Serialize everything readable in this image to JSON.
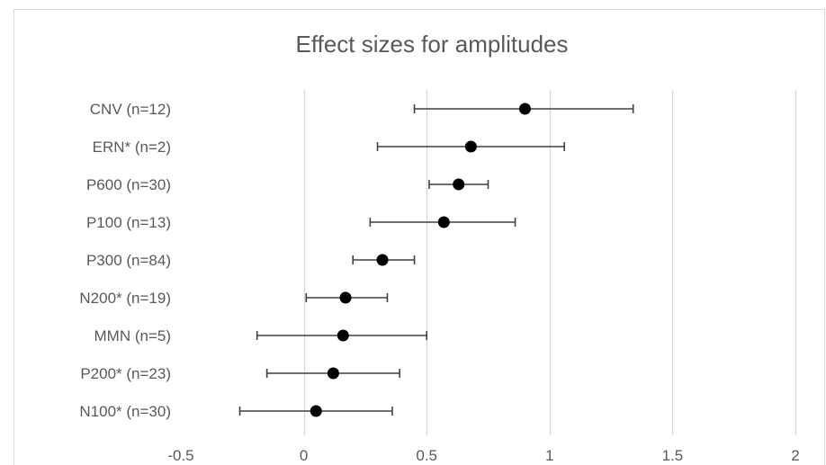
{
  "chart_data": {
    "type": "forest",
    "title": "Effect sizes for amplitudes",
    "xlabel": "",
    "ylabel": "",
    "xlim": [
      -0.5,
      2
    ],
    "x_ticks": [
      -0.5,
      0,
      0.5,
      1,
      1.5,
      2
    ],
    "x_tick_labels": [
      "-0.5",
      "0",
      "0.5",
      "1",
      "1.5",
      "2"
    ],
    "grid": "vertical",
    "legend": "none",
    "categories": [
      "CNV (n=12)",
      "ERN* (n=2)",
      "P600 (n=30)",
      "P100 (n=13)",
      "P300 (n=84)",
      "N200* (n=19)",
      "MMN (n=5)",
      "P200* (n=23)",
      "N100* (n=30)"
    ],
    "estimates": [
      0.9,
      0.68,
      0.63,
      0.57,
      0.32,
      0.17,
      0.16,
      0.12,
      0.05
    ],
    "ci_lower": [
      0.45,
      0.3,
      0.51,
      0.27,
      0.2,
      0.01,
      -0.19,
      -0.15,
      -0.26
    ],
    "ci_upper": [
      1.34,
      1.06,
      0.75,
      0.86,
      0.45,
      0.34,
      0.5,
      0.39,
      0.36
    ],
    "colors": {
      "marker": "#000000",
      "errorbar": "#404040",
      "grid": "#d9d9d9",
      "text": "#595959",
      "border": "#d9d9d9"
    }
  }
}
